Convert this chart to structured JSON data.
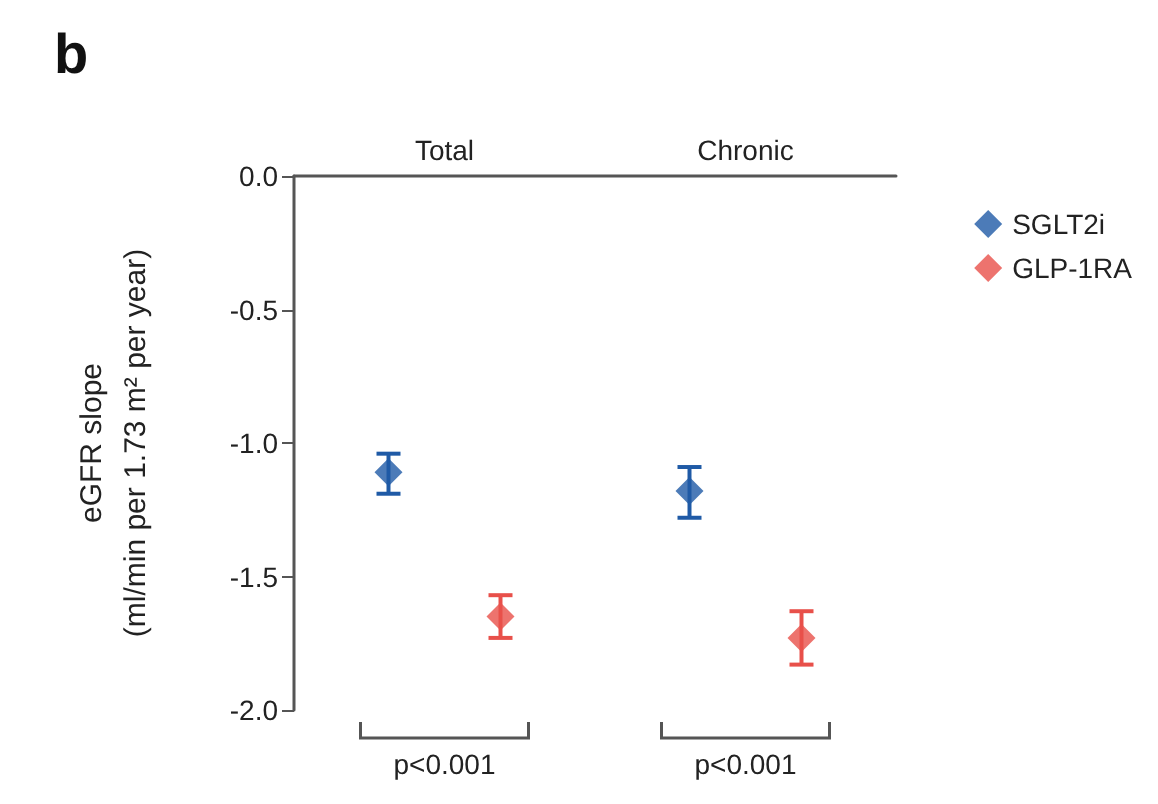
{
  "chart_data": {
    "type": "scatter",
    "title": "b",
    "ylabel": "eGFR slope\n(ml/min per 1.73 m² per year)",
    "categories": [
      "Total",
      "Chronic"
    ],
    "series": [
      {
        "name": "SGLT2i",
        "color": "#1f5aa6",
        "values": [
          -1.11,
          -1.18
        ],
        "errors": [
          [
            -1.19,
            -1.04
          ],
          [
            -1.28,
            -1.09
          ]
        ]
      },
      {
        "name": "GLP-1RA",
        "color": "#e8504a",
        "values": [
          -1.65,
          -1.73
        ],
        "errors": [
          [
            -1.73,
            -1.57
          ],
          [
            -1.83,
            -1.63
          ]
        ]
      }
    ],
    "ylim": [
      -2.0,
      0.0
    ],
    "yticks": [
      {
        "value": 0,
        "label": "0.0"
      },
      {
        "value": -0.5,
        "label": "-0.5"
      },
      {
        "value": -1,
        "label": "-1.0"
      },
      {
        "value": -1.5,
        "label": "-1.5"
      },
      {
        "value": -2,
        "label": "-2.0"
      }
    ],
    "marker": "diamond",
    "legend": "right",
    "grid": false,
    "annotations": [
      "p<0.001",
      "p<0.001"
    ]
  }
}
